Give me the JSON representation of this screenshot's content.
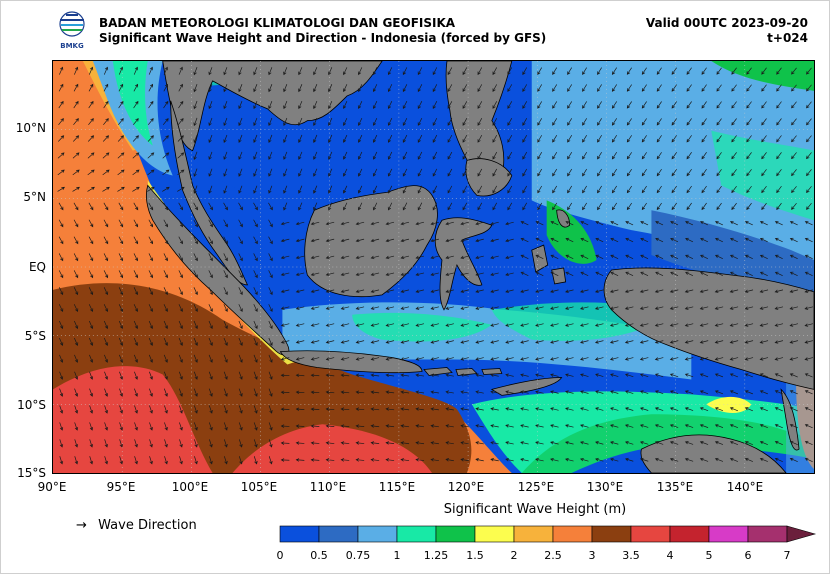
{
  "header": {
    "logo_text": "BMKG",
    "title_line1": "BADAN METEOROLOGI KLIMATOLOGI DAN GEOFISIKA",
    "title_line2": "Significant Wave Height and Direction - Indonesia (forced by GFS)",
    "valid_label": "Valid 00UTC 2023-09-20",
    "lead_label": "t+024"
  },
  "axes": {
    "lat_labels": [
      "10°N",
      "5°N",
      "EQ",
      "5°S",
      "10°S",
      "15°S"
    ],
    "lon_labels": [
      "90°E",
      "95°E",
      "100°E",
      "105°E",
      "110°E",
      "115°E",
      "120°E",
      "125°E",
      "130°E",
      "135°E",
      "140°E"
    ],
    "lat_range": [
      -15,
      15
    ],
    "lon_range": [
      90,
      145
    ]
  },
  "legend": {
    "arrow_glyph": "→",
    "direction_label": "Wave Direction",
    "colorbar_title": "Significant Wave Height (m)",
    "ticks": [
      "0",
      "0.5",
      "0.75",
      "1",
      "1.25",
      "1.5",
      "2",
      "2.5",
      "3",
      "3.5",
      "4",
      "5",
      "6",
      "7"
    ],
    "colors": [
      "#0a50dd",
      "#2d6bc3",
      "#5aaee6",
      "#18e9a6",
      "#0fc24a",
      "#fcfd4e",
      "#f7b23b",
      "#f5803a",
      "#8b3f10",
      "#e64640",
      "#c4232e",
      "#d73bc7",
      "#a5306e"
    ]
  },
  "colors": {
    "land": "#808080",
    "coast": "#000000",
    "arrow": "#1a1a1a",
    "grid": "#cccccc"
  }
}
